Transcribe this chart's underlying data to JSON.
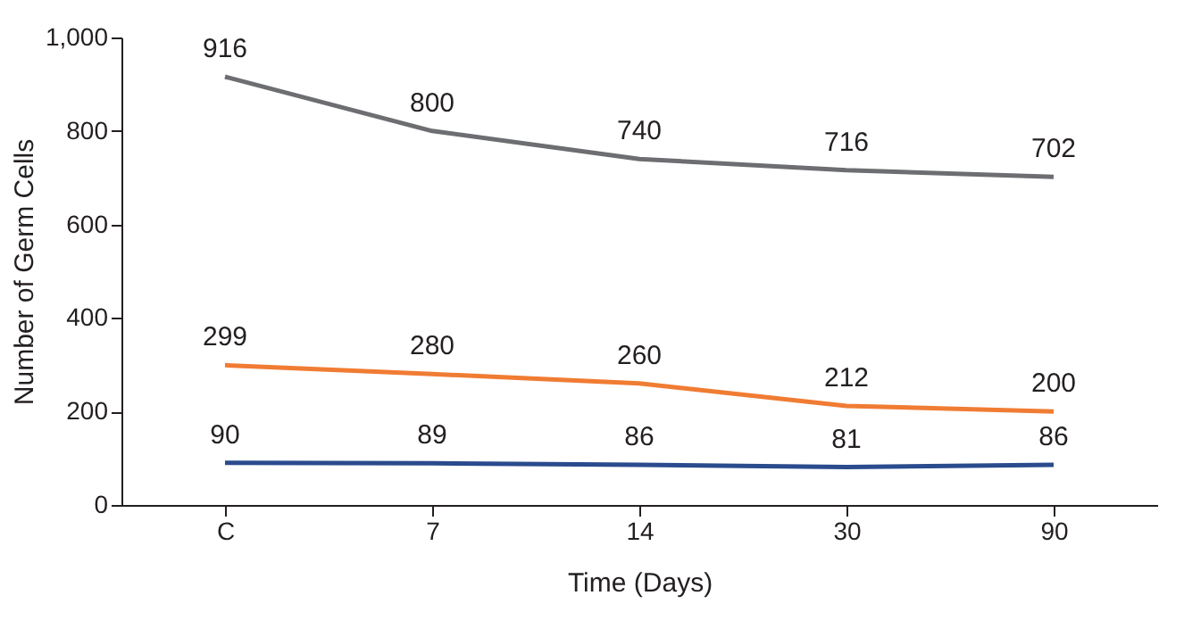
{
  "chart_data": {
    "type": "line",
    "xlabel": "Time (Days)",
    "ylabel": "Number of Germ Cells",
    "categories": [
      "C",
      "7",
      "14",
      "30",
      "90"
    ],
    "series": [
      {
        "color": "#6d6e71",
        "values": [
          916,
          800,
          740,
          716,
          702
        ]
      },
      {
        "color": "#f07c33",
        "values": [
          299,
          280,
          260,
          212,
          200
        ]
      },
      {
        "color": "#2a4b8d",
        "values": [
          90,
          89,
          86,
          81,
          86
        ]
      }
    ],
    "ylim": [
      0,
      1000
    ],
    "yticks": [
      0,
      200,
      400,
      600,
      800,
      {
        "value": 1000,
        "label": "1,000"
      }
    ],
    "grid": false,
    "legend": false,
    "data_labels": true,
    "marker": "none",
    "line_style": "solid"
  }
}
